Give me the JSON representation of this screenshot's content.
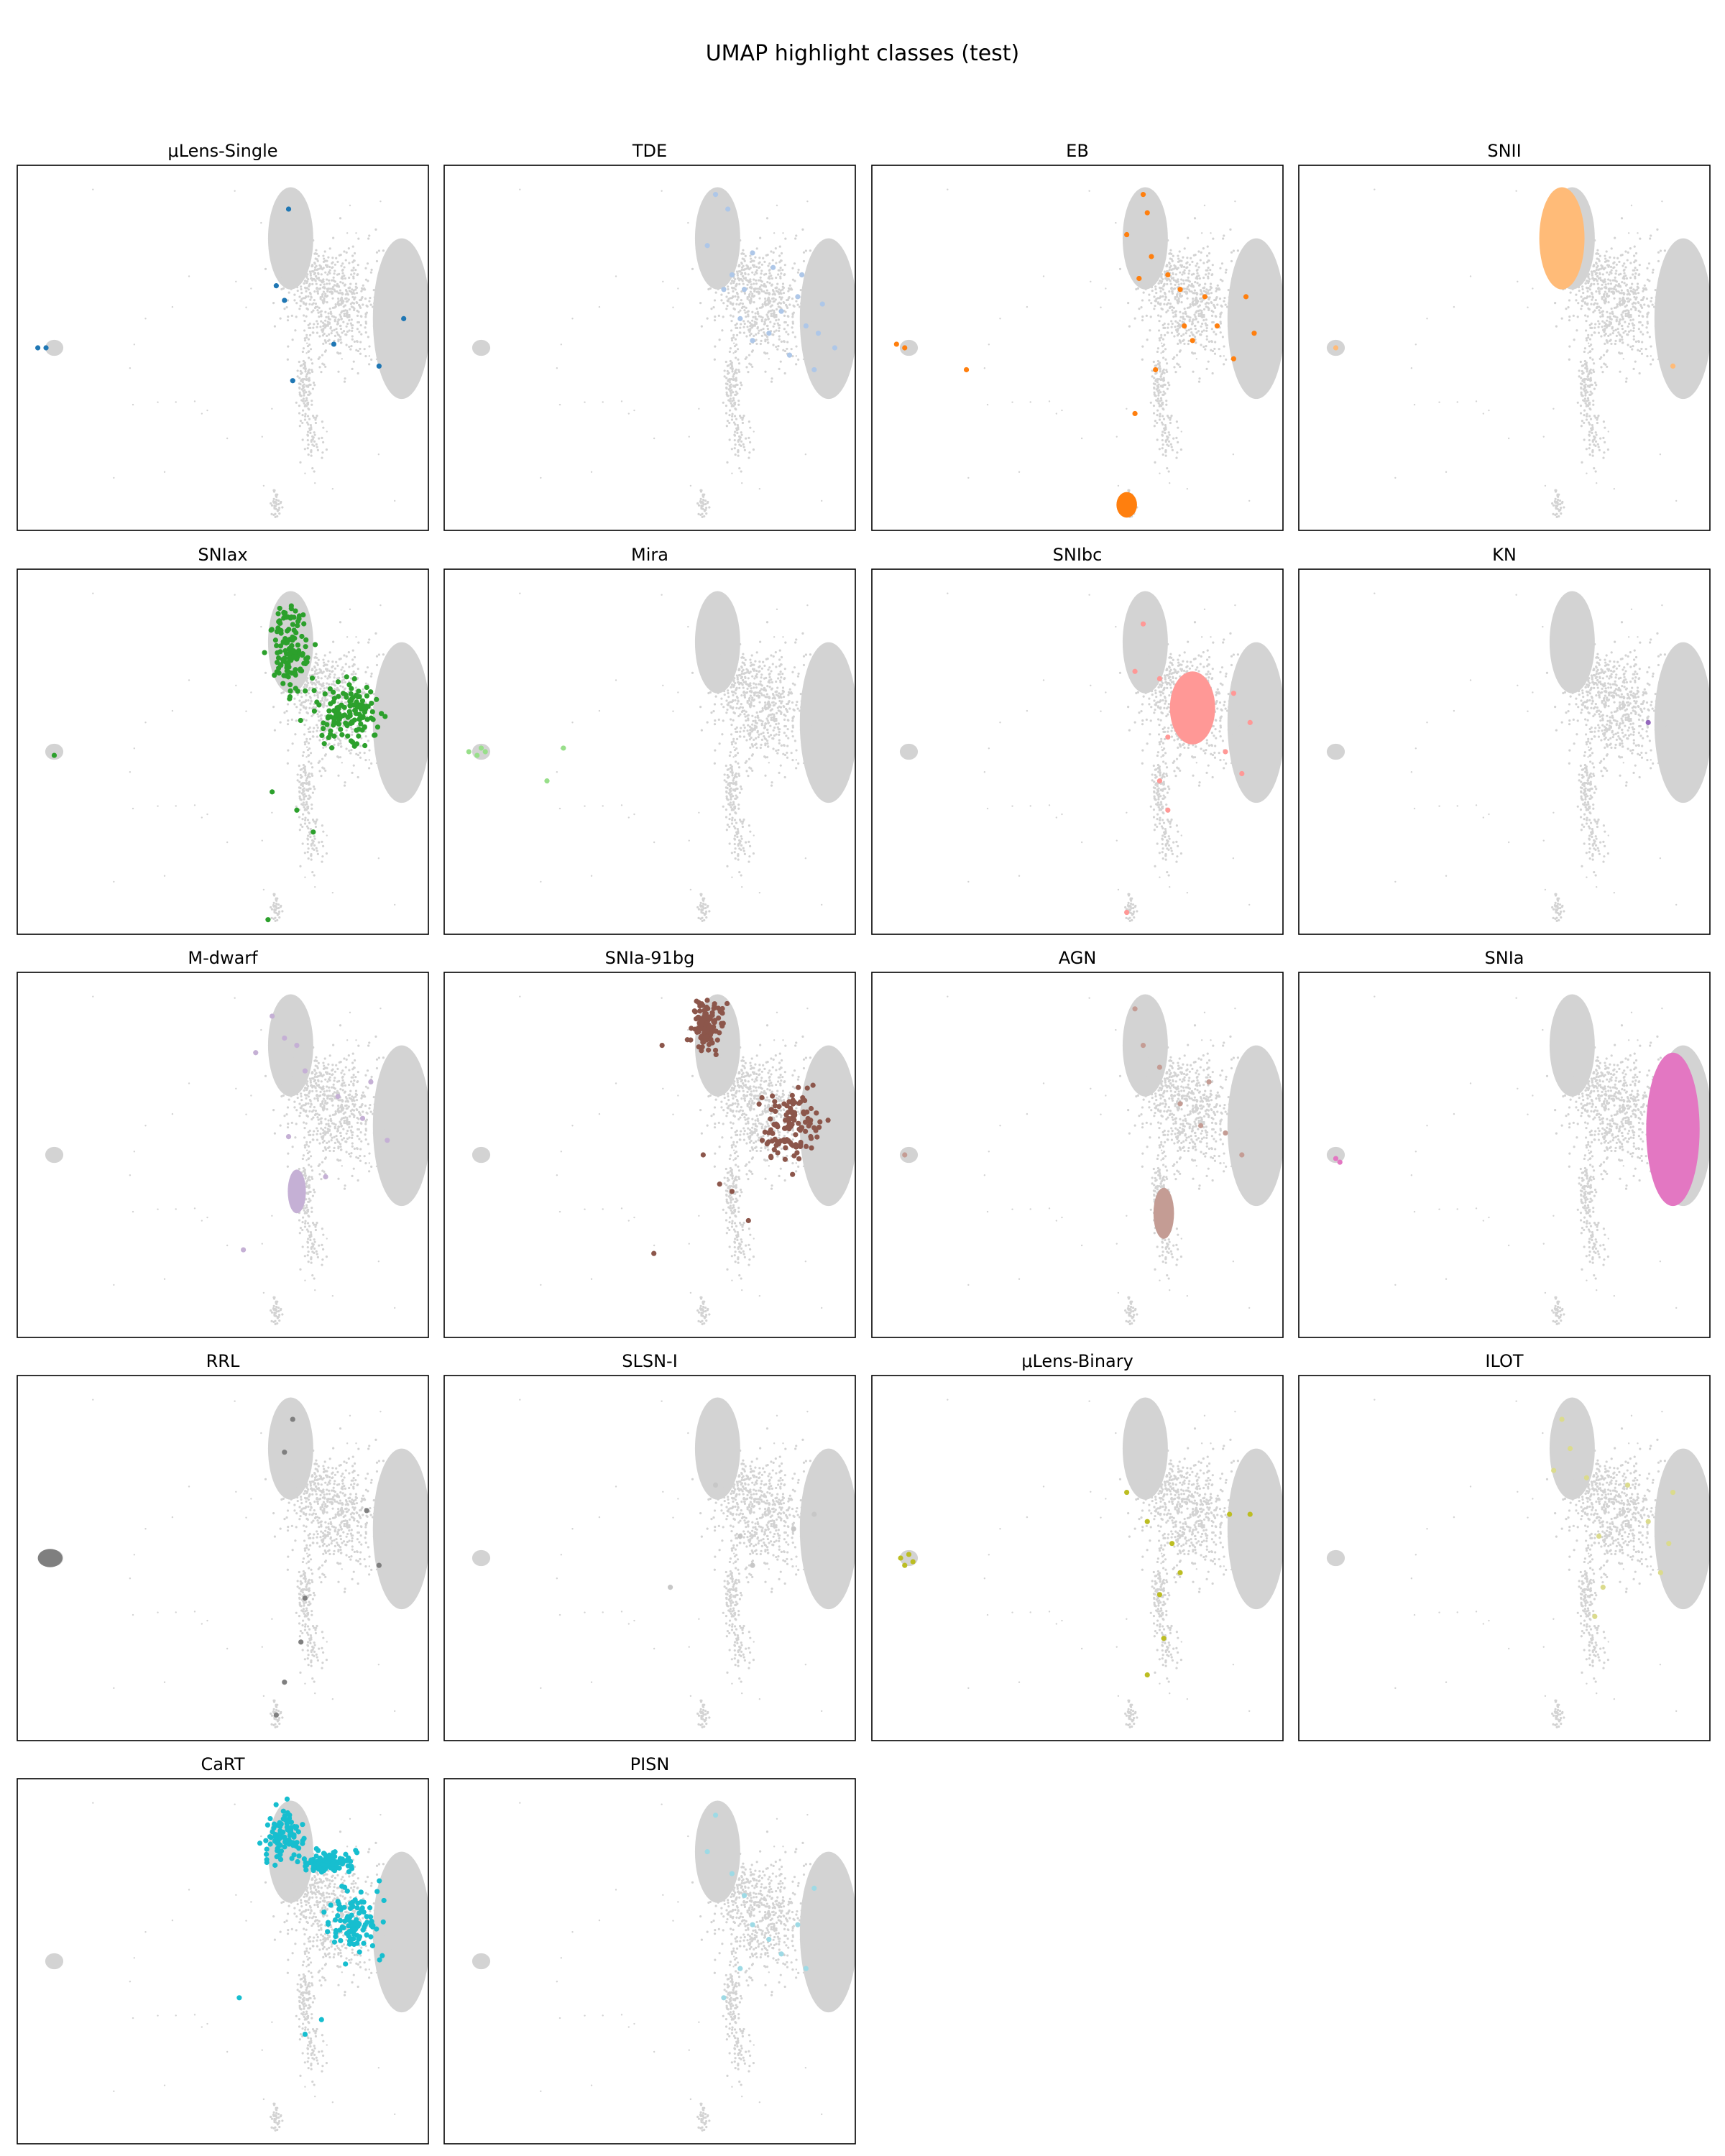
{
  "figure": {
    "title": "UMAP highlight classes (test)",
    "background_color": "#d3d3d3"
  },
  "chart_data": [
    {
      "type": "scatter",
      "title": "μLens-Single",
      "color": "#1f77b4",
      "highlight": {
        "kind": "points",
        "points": [
          [
            0.66,
            0.12
          ],
          [
            0.63,
            0.33
          ],
          [
            0.65,
            0.37
          ],
          [
            0.77,
            0.49
          ],
          [
            0.88,
            0.55
          ],
          [
            0.94,
            0.42
          ],
          [
            0.67,
            0.59
          ],
          [
            0.07,
            0.5
          ],
          [
            0.05,
            0.5
          ]
        ]
      }
    },
    {
      "type": "scatter",
      "title": "TDE",
      "color": "#aec7e8",
      "highlight": {
        "kind": "points",
        "points": [
          [
            0.66,
            0.08
          ],
          [
            0.69,
            0.12
          ],
          [
            0.64,
            0.22
          ],
          [
            0.7,
            0.3
          ],
          [
            0.73,
            0.34
          ],
          [
            0.75,
            0.24
          ],
          [
            0.8,
            0.28
          ],
          [
            0.86,
            0.36
          ],
          [
            0.92,
            0.38
          ],
          [
            0.95,
            0.5
          ],
          [
            0.88,
            0.44
          ],
          [
            0.84,
            0.52
          ],
          [
            0.9,
            0.56
          ],
          [
            0.79,
            0.46
          ],
          [
            0.75,
            0.48
          ],
          [
            0.72,
            0.42
          ],
          [
            0.68,
            0.34
          ],
          [
            0.82,
            0.4
          ],
          [
            0.87,
            0.3
          ],
          [
            0.91,
            0.46
          ]
        ]
      }
    },
    {
      "type": "scatter",
      "title": "EB",
      "color": "#ff7f0e",
      "highlight": {
        "kind": "points",
        "points": [
          [
            0.66,
            0.08
          ],
          [
            0.67,
            0.13
          ],
          [
            0.62,
            0.19
          ],
          [
            0.68,
            0.25
          ],
          [
            0.65,
            0.31
          ],
          [
            0.72,
            0.3
          ],
          [
            0.75,
            0.34
          ],
          [
            0.76,
            0.44
          ],
          [
            0.78,
            0.48
          ],
          [
            0.84,
            0.44
          ],
          [
            0.88,
            0.53
          ],
          [
            0.91,
            0.36
          ],
          [
            0.93,
            0.46
          ],
          [
            0.81,
            0.36
          ],
          [
            0.69,
            0.56
          ],
          [
            0.64,
            0.68
          ],
          [
            0.06,
            0.49
          ],
          [
            0.08,
            0.5
          ],
          [
            0.23,
            0.56
          ]
        ],
        "blob": {
          "cx": 0.62,
          "cy": 0.93,
          "rx": 0.025,
          "ry": 0.035
        }
      }
    },
    {
      "type": "scatter",
      "title": "SNII",
      "color": "#ffbb78",
      "highlight": {
        "kind": "blob",
        "blob": {
          "cx": 0.64,
          "cy": 0.2,
          "rx": 0.055,
          "ry": 0.14
        },
        "points": [
          [
            0.09,
            0.5
          ],
          [
            0.91,
            0.55
          ]
        ]
      }
    },
    {
      "type": "scatter",
      "title": "SNIax",
      "color": "#2ca02c",
      "highlight": {
        "kind": "dense",
        "n": 260,
        "regions": [
          [
            0.66,
            0.22,
            0.06,
            0.15
          ],
          [
            0.8,
            0.4,
            0.12,
            0.12
          ]
        ],
        "points": [
          [
            0.09,
            0.51
          ],
          [
            0.62,
            0.61
          ],
          [
            0.72,
            0.72
          ],
          [
            0.68,
            0.66
          ],
          [
            0.61,
            0.96
          ]
        ]
      }
    },
    {
      "type": "scatter",
      "title": "Mira",
      "color": "#98df8a",
      "highlight": {
        "kind": "points",
        "points": [
          [
            0.06,
            0.5
          ],
          [
            0.08,
            0.51
          ],
          [
            0.1,
            0.5
          ],
          [
            0.09,
            0.49
          ],
          [
            0.29,
            0.49
          ],
          [
            0.25,
            0.58
          ]
        ]
      }
    },
    {
      "type": "scatter",
      "title": "SNIbc",
      "color": "#ff9896",
      "highlight": {
        "kind": "blob",
        "blob": {
          "cx": 0.78,
          "cy": 0.38,
          "rx": 0.055,
          "ry": 0.1
        },
        "points": [
          [
            0.66,
            0.15
          ],
          [
            0.64,
            0.28
          ],
          [
            0.7,
            0.3
          ],
          [
            0.72,
            0.46
          ],
          [
            0.88,
            0.34
          ],
          [
            0.92,
            0.42
          ],
          [
            0.86,
            0.5
          ],
          [
            0.9,
            0.56
          ],
          [
            0.7,
            0.58
          ],
          [
            0.72,
            0.66
          ],
          [
            0.62,
            0.94
          ]
        ]
      }
    },
    {
      "type": "scatter",
      "title": "KN",
      "color": "#9467bd",
      "highlight": {
        "kind": "points",
        "points": [
          [
            0.85,
            0.42
          ]
        ]
      }
    },
    {
      "type": "scatter",
      "title": "M-dwarf",
      "color": "#c5b0d5",
      "highlight": {
        "kind": "blob",
        "blob": {
          "cx": 0.68,
          "cy": 0.6,
          "rx": 0.022,
          "ry": 0.06
        },
        "points": [
          [
            0.62,
            0.12
          ],
          [
            0.65,
            0.18
          ],
          [
            0.68,
            0.2
          ],
          [
            0.58,
            0.22
          ],
          [
            0.7,
            0.27
          ],
          [
            0.78,
            0.34
          ],
          [
            0.84,
            0.4
          ],
          [
            0.86,
            0.3
          ],
          [
            0.9,
            0.46
          ],
          [
            0.75,
            0.56
          ],
          [
            0.55,
            0.76
          ],
          [
            0.66,
            0.45
          ]
        ]
      }
    },
    {
      "type": "scatter",
      "title": "SNIa-91bg",
      "color": "#8c564b",
      "highlight": {
        "kind": "dense",
        "n": 240,
        "regions": [
          [
            0.64,
            0.15,
            0.05,
            0.1
          ],
          [
            0.85,
            0.42,
            0.09,
            0.14
          ]
        ],
        "points": [
          [
            0.53,
            0.2
          ],
          [
            0.67,
            0.58
          ],
          [
            0.7,
            0.6
          ],
          [
            0.74,
            0.68
          ],
          [
            0.51,
            0.77
          ],
          [
            0.63,
            0.5
          ]
        ]
      }
    },
    {
      "type": "scatter",
      "title": "AGN",
      "color": "#c49c94",
      "highlight": {
        "kind": "blob",
        "blob": {
          "cx": 0.71,
          "cy": 0.66,
          "rx": 0.025,
          "ry": 0.07
        },
        "points": [
          [
            0.64,
            0.1
          ],
          [
            0.66,
            0.2
          ],
          [
            0.7,
            0.26
          ],
          [
            0.75,
            0.36
          ],
          [
            0.8,
            0.42
          ],
          [
            0.82,
            0.3
          ],
          [
            0.86,
            0.44
          ],
          [
            0.9,
            0.5
          ],
          [
            0.08,
            0.5
          ]
        ]
      }
    },
    {
      "type": "scatter",
      "title": "SNIa",
      "color": "#e377c2",
      "highlight": {
        "kind": "blob",
        "blob": {
          "cx": 0.91,
          "cy": 0.43,
          "rx": 0.065,
          "ry": 0.21
        },
        "points": [
          [
            0.09,
            0.51
          ],
          [
            0.1,
            0.52
          ]
        ]
      }
    },
    {
      "type": "scatter",
      "title": "RRL",
      "color": "#7f7f7f",
      "highlight": {
        "kind": "blob",
        "blob": {
          "cx": 0.08,
          "cy": 0.5,
          "rx": 0.03,
          "ry": 0.025
        },
        "points": [
          [
            0.67,
            0.12
          ],
          [
            0.65,
            0.21
          ],
          [
            0.85,
            0.37
          ],
          [
            0.88,
            0.52
          ],
          [
            0.7,
            0.61
          ],
          [
            0.69,
            0.73
          ],
          [
            0.65,
            0.84
          ],
          [
            0.63,
            0.93
          ]
        ]
      }
    },
    {
      "type": "scatter",
      "title": "SLSN-I",
      "color": "#c7c7c7",
      "highlight": {
        "kind": "points",
        "points": [
          [
            0.66,
            0.3
          ],
          [
            0.72,
            0.44
          ],
          [
            0.75,
            0.52
          ],
          [
            0.85,
            0.42
          ],
          [
            0.9,
            0.38
          ],
          [
            0.55,
            0.58
          ]
        ]
      }
    },
    {
      "type": "scatter",
      "title": "μLens-Binary",
      "color": "#bcbd22",
      "highlight": {
        "kind": "points",
        "points": [
          [
            0.07,
            0.5
          ],
          [
            0.09,
            0.49
          ],
          [
            0.1,
            0.51
          ],
          [
            0.08,
            0.52
          ],
          [
            0.62,
            0.32
          ],
          [
            0.67,
            0.4
          ],
          [
            0.73,
            0.46
          ],
          [
            0.75,
            0.54
          ],
          [
            0.7,
            0.6
          ],
          [
            0.71,
            0.72
          ],
          [
            0.67,
            0.82
          ],
          [
            0.87,
            0.38
          ],
          [
            0.92,
            0.38
          ]
        ]
      }
    },
    {
      "type": "scatter",
      "title": "ILOT",
      "color": "#dbdb8d",
      "highlight": {
        "kind": "points",
        "points": [
          [
            0.64,
            0.12
          ],
          [
            0.66,
            0.2
          ],
          [
            0.62,
            0.26
          ],
          [
            0.7,
            0.28
          ],
          [
            0.8,
            0.3
          ],
          [
            0.85,
            0.4
          ],
          [
            0.9,
            0.46
          ],
          [
            0.88,
            0.54
          ],
          [
            0.73,
            0.44
          ],
          [
            0.74,
            0.58
          ],
          [
            0.72,
            0.66
          ],
          [
            0.91,
            0.32
          ]
        ]
      }
    },
    {
      "type": "scatter",
      "title": "CaRT",
      "color": "#17becf",
      "highlight": {
        "kind": "dense",
        "n": 300,
        "regions": [
          [
            0.65,
            0.15,
            0.06,
            0.11
          ],
          [
            0.76,
            0.23,
            0.08,
            0.04
          ],
          [
            0.82,
            0.4,
            0.1,
            0.13
          ]
        ],
        "points": [
          [
            0.54,
            0.6
          ],
          [
            0.74,
            0.66
          ],
          [
            0.7,
            0.7
          ]
        ]
      }
    },
    {
      "type": "scatter",
      "title": "PISN",
      "color": "#9edae5",
      "highlight": {
        "kind": "points",
        "points": [
          [
            0.66,
            0.1
          ],
          [
            0.64,
            0.2
          ],
          [
            0.7,
            0.26
          ],
          [
            0.73,
            0.32
          ],
          [
            0.75,
            0.4
          ],
          [
            0.79,
            0.44
          ],
          [
            0.82,
            0.48
          ],
          [
            0.86,
            0.4
          ],
          [
            0.88,
            0.52
          ],
          [
            0.9,
            0.3
          ],
          [
            0.72,
            0.52
          ],
          [
            0.68,
            0.6
          ]
        ]
      }
    }
  ]
}
